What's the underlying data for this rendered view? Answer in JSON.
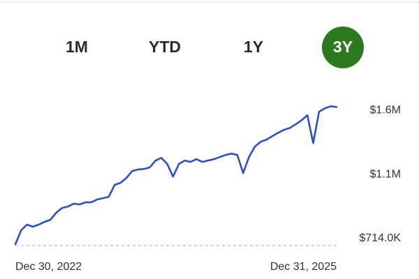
{
  "tabs": [
    "1M",
    "YTD",
    "1Y",
    "3Y"
  ],
  "chart_data": {
    "type": "line",
    "color": "#2a50c8",
    "categories": [
      "Dec 30, 2022",
      null,
      null,
      null,
      null,
      null,
      null,
      null,
      null,
      null,
      null,
      null,
      null,
      null,
      null,
      null,
      null,
      null,
      null,
      null,
      null,
      null,
      null,
      null,
      null,
      null,
      null,
      null,
      null,
      null,
      null,
      null,
      null,
      null,
      null,
      null,
      null,
      null,
      null,
      null,
      null,
      null,
      null,
      null,
      null,
      null,
      null,
      null,
      null,
      null,
      null,
      null,
      null,
      null,
      null,
      "Dec 31, 2025"
    ],
    "values": [
      723000,
      816000,
      853000,
      839000,
      853000,
      871000,
      885000,
      932000,
      964000,
      973000,
      992000,
      987000,
      1001000,
      1001000,
      1020000,
      1029000,
      1038000,
      1117000,
      1131000,
      1163000,
      1209000,
      1219000,
      1223000,
      1233000,
      1279000,
      1297000,
      1256000,
      1172000,
      1256000,
      1279000,
      1270000,
      1288000,
      1270000,
      1279000,
      1288000,
      1302000,
      1316000,
      1325000,
      1316000,
      1196000,
      1302000,
      1371000,
      1404000,
      1418000,
      1441000,
      1464000,
      1483000,
      1496000,
      1520000,
      1547000,
      1580000,
      1395000,
      1603000,
      1626000,
      1640000,
      1635000
    ],
    "ylim": [
      714000,
      1660000
    ],
    "yticks": [
      {
        "value": 714000,
        "label": "$714.0K"
      },
      {
        "value": 1140000,
        "label": "$1.1M"
      },
      {
        "value": 1566000,
        "label": "$1.6M"
      }
    ]
  }
}
